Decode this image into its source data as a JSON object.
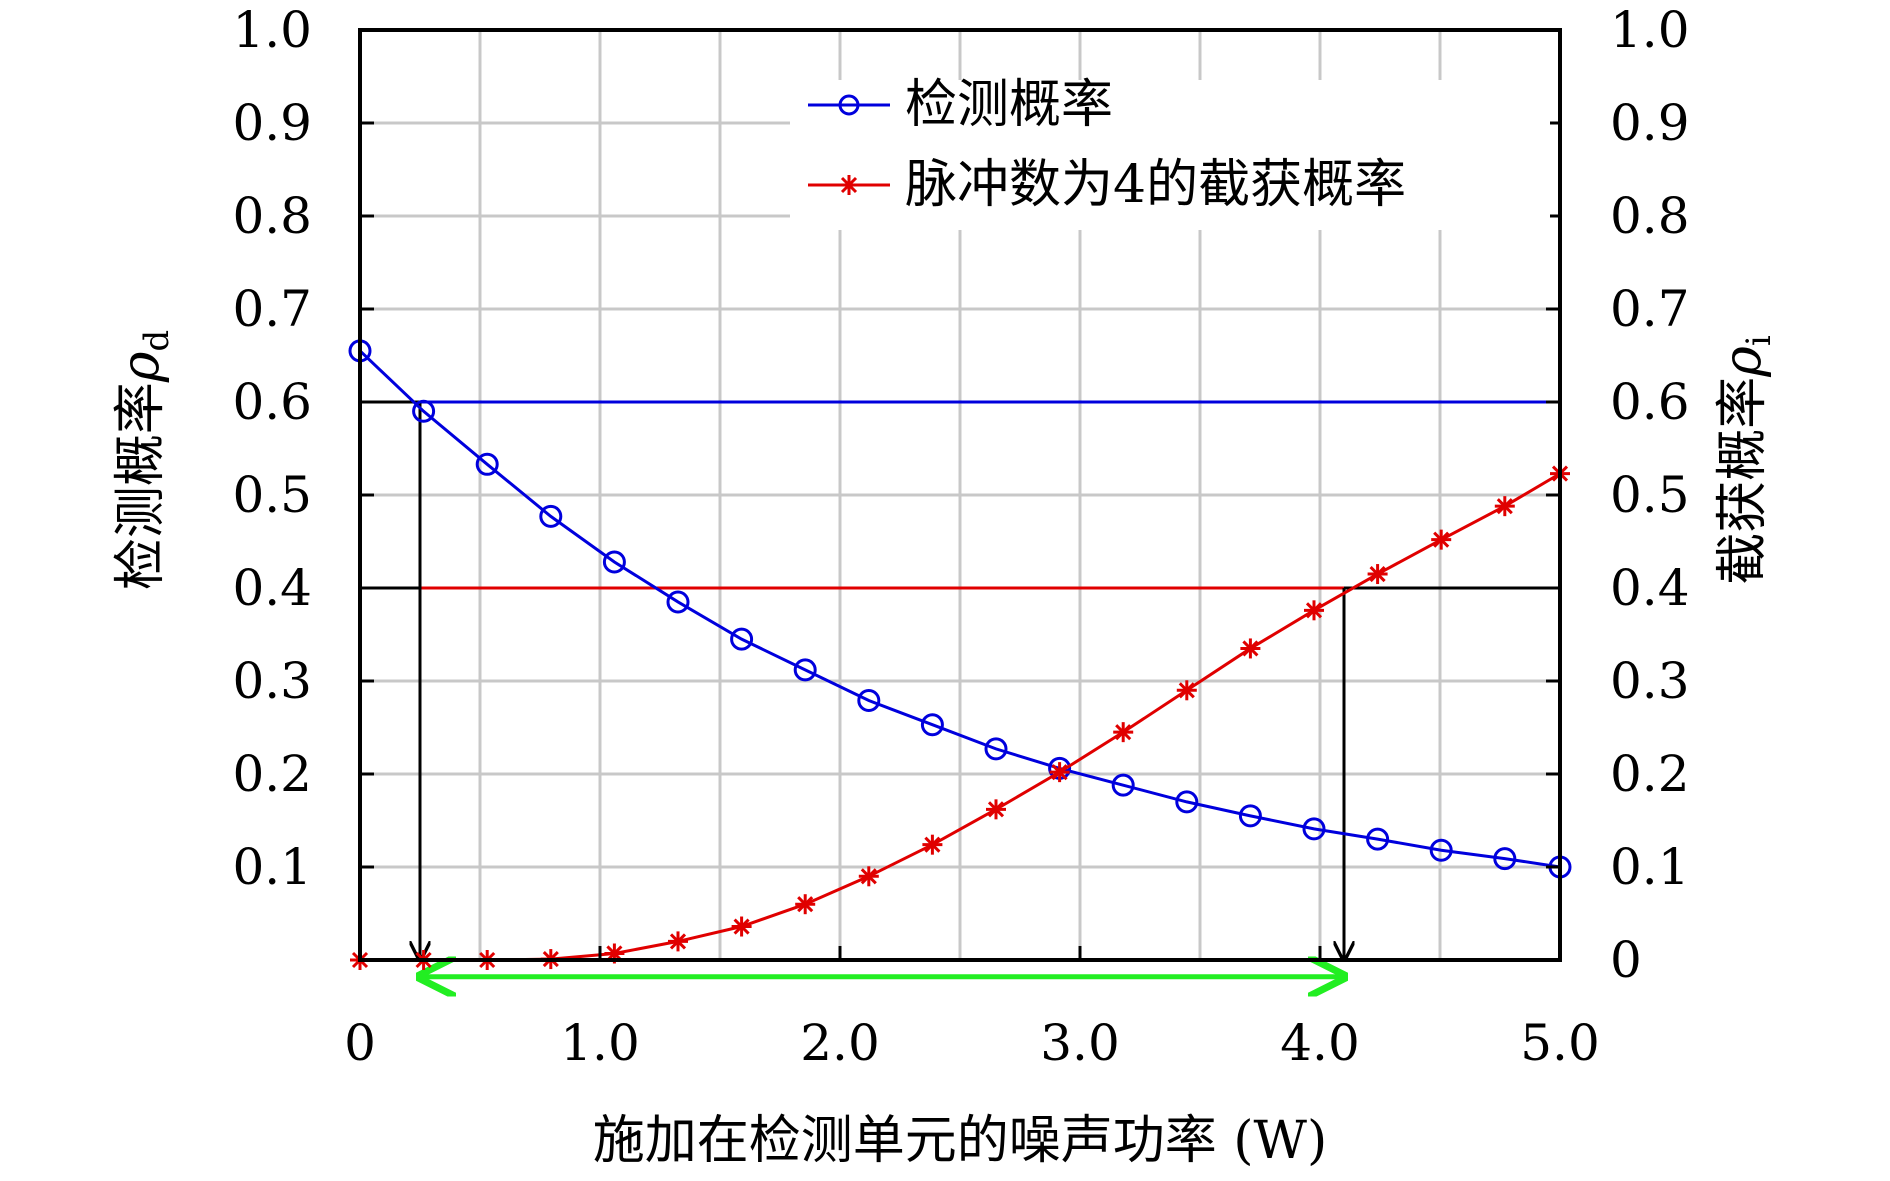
{
  "chart_data": {
    "type": "line",
    "title": "",
    "xlabel": "施加在检测单元的噪声功率 (W)",
    "ylabel_left": "检测概率",
    "ylabel_left_symbol": "ρ",
    "ylabel_left_sub": "d",
    "ylabel_right": "截获概率",
    "ylabel_right_symbol": "ρ",
    "ylabel_right_sub": "i",
    "xlim": [
      0,
      5
    ],
    "ylim": [
      0,
      1
    ],
    "grid": true,
    "legend_position": "top-right",
    "x_ticks": [
      {
        "value": 0,
        "label": "0"
      },
      {
        "value": 1,
        "label": "1.0"
      },
      {
        "value": 2,
        "label": "2.0"
      },
      {
        "value": 3,
        "label": "3.0"
      },
      {
        "value": 4,
        "label": "4.0"
      },
      {
        "value": 5,
        "label": "5.0"
      }
    ],
    "x_grid": [
      0.5,
      1,
      1.5,
      2,
      2.5,
      3,
      3.5,
      4,
      4.5
    ],
    "y_grid": [
      0.1,
      0.2,
      0.3,
      0.4,
      0.5,
      0.6,
      0.7,
      0.8,
      0.9
    ],
    "y_ticks_left": [
      "0.1",
      "0.2",
      "0.3",
      "0.4",
      "0.5",
      "0.6",
      "0.7",
      "0.8",
      "0.9",
      "1.0"
    ],
    "y_ticks_right": [
      "0",
      "0.1",
      "0.2",
      "0.3",
      "0.4",
      "0.5",
      "0.6",
      "0.7",
      "0.8",
      "0.9",
      "1.0"
    ],
    "series": [
      {
        "name": "检测概率",
        "color": "#0000dd",
        "marker": "circle",
        "x": [
          0,
          0.265,
          0.53,
          0.795,
          1.06,
          1.325,
          1.59,
          1.855,
          2.12,
          2.385,
          2.65,
          2.915,
          3.18,
          3.445,
          3.71,
          3.975,
          4.24,
          4.505,
          4.77,
          5.0
        ],
        "y": [
          0.655,
          0.59,
          0.533,
          0.477,
          0.428,
          0.385,
          0.345,
          0.312,
          0.279,
          0.253,
          0.227,
          0.206,
          0.188,
          0.17,
          0.155,
          0.141,
          0.13,
          0.118,
          0.109,
          0.1
        ]
      },
      {
        "name": "脉冲数为4的截获概率",
        "color": "#e00000",
        "marker": "asterisk",
        "x": [
          0,
          0.265,
          0.53,
          0.795,
          1.06,
          1.325,
          1.59,
          1.855,
          2.12,
          2.385,
          2.65,
          2.915,
          3.18,
          3.445,
          3.71,
          3.975,
          4.24,
          4.505,
          4.77,
          5.0
        ],
        "y": [
          0.0,
          0.0,
          0.0,
          0.001,
          0.007,
          0.02,
          0.036,
          0.06,
          0.09,
          0.124,
          0.162,
          0.202,
          0.245,
          0.29,
          0.335,
          0.376,
          0.415,
          0.452,
          0.488,
          0.523
        ]
      }
    ],
    "annotations": [
      {
        "kind": "hline",
        "y": 0.6,
        "x_from": 0,
        "x_to": 0.25,
        "color": "#000000"
      },
      {
        "kind": "hline",
        "y": 0.6,
        "x_from": 0.25,
        "x_to": 5,
        "color": "#0000dd"
      },
      {
        "kind": "hline",
        "y": 0.4,
        "x_from": 0.25,
        "x_to": 4.1,
        "color": "#e00000"
      },
      {
        "kind": "hline",
        "y": 0.4,
        "x_from": 0,
        "x_to": 0.25,
        "color": "#000000"
      },
      {
        "kind": "hline",
        "y": 0.4,
        "x_from": 4.1,
        "x_to": 5,
        "color": "#000000"
      },
      {
        "kind": "vline_arrow",
        "x": 0.25,
        "y_from": 0.6,
        "y_to": 0.0,
        "color": "#000000"
      },
      {
        "kind": "vline_arrow",
        "x": 4.1,
        "y_from": 0.4,
        "y_to": 0.0,
        "color": "#000000"
      },
      {
        "kind": "double_arrow",
        "y": -0.018,
        "x_from": 0.25,
        "x_to": 4.1,
        "color": "#22ee22"
      }
    ]
  }
}
